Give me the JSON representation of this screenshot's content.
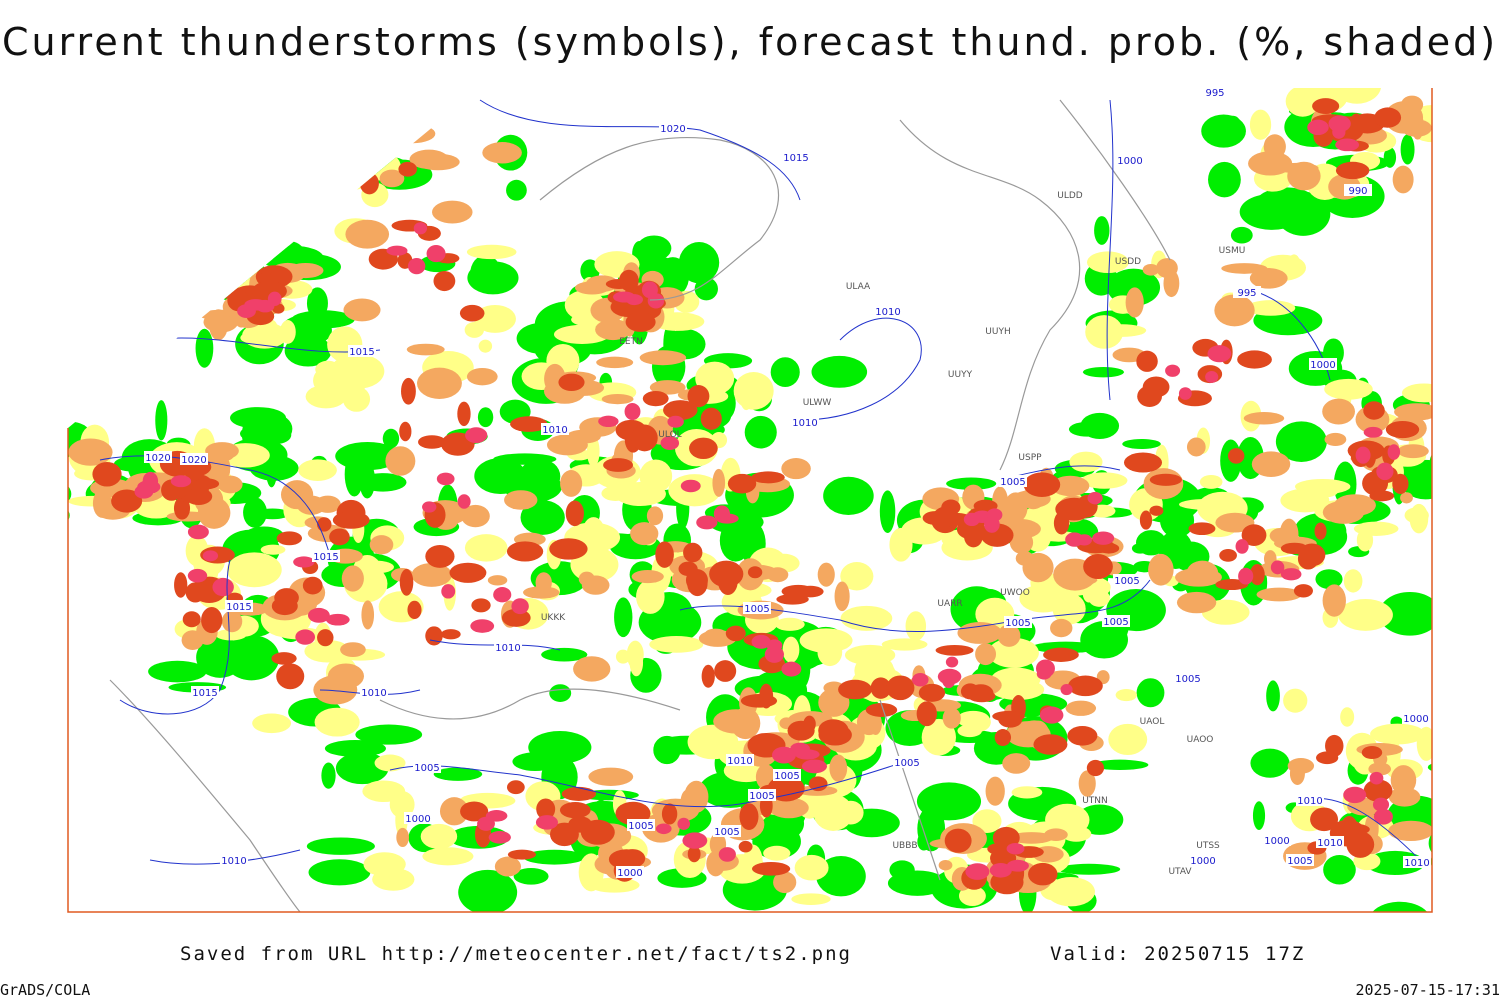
{
  "title": "Current thunderstorms (symbols), forecast thund. prob. (%, shaded)",
  "footer": {
    "source": "Saved from URL http://meteocenter.net/fact/ts2.png",
    "valid": "Valid: 20250715 17Z",
    "software": "GrADS/COLA",
    "timestamp": "2025-07-15-17:31"
  },
  "map": {
    "isobar_labels": [
      1020,
      1015,
      1015,
      1010,
      1010,
      1010,
      1020,
      1020,
      1015,
      1015,
      1010,
      1010,
      1015,
      1010,
      1005,
      1005,
      1005,
      1005,
      1005,
      1005,
      1005,
      1005,
      1005,
      1005,
      1005,
      1005,
      1000,
      1000,
      1000,
      1000,
      995,
      995,
      990,
      1000,
      1010,
      1000,
      1010,
      1005,
      1000,
      1010,
      1010
    ],
    "stations": [
      "ULAA",
      "UUYH",
      "ULWW",
      "UUYY",
      "ULOL",
      "EETN",
      "UKKK",
      "USPP",
      "UWOO",
      "UARR",
      "USDD",
      "ULDD",
      "USMU",
      "UAOL",
      "UAOO",
      "UTNN",
      "UTSS",
      "UTAV",
      "UBBB"
    ]
  }
}
